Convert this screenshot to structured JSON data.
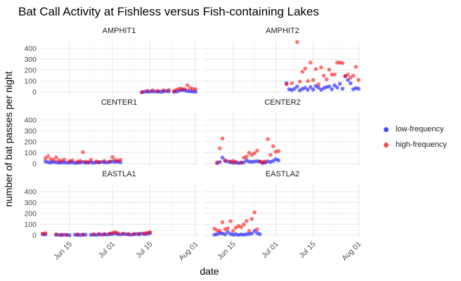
{
  "chart_data": {
    "type": "scatter",
    "title": "Bat Call Activity at Fishless versus Fish-containing Lakes",
    "xlabel": "date",
    "ylabel": "number of bat passes per night",
    "xlim": [
      "2023-06-04",
      "2023-08-02"
    ],
    "ylim": [
      -20,
      470
    ],
    "yticks": [
      0,
      100,
      200,
      300,
      400
    ],
    "xticks": [
      {
        "date": "2023-06-15",
        "label": "Jun 15"
      },
      {
        "date": "2023-07-01",
        "label": "Jul 01"
      },
      {
        "date": "2023-07-15",
        "label": "Jul 15"
      },
      {
        "date": "2023-08-01",
        "label": "Aug 01"
      }
    ],
    "grid": true,
    "legend_position": "right",
    "series_meta": [
      {
        "name": "low-frequency",
        "color": "#0000ff"
      },
      {
        "name": "high-frequency",
        "color": "#ff0000"
      }
    ],
    "facets": [
      {
        "name": "AMPHIT1",
        "low": {
          "x": [
            "2023-07-12",
            "2023-07-13",
            "2023-07-14",
            "2023-07-15",
            "2023-07-16",
            "2023-07-17",
            "2023-07-18",
            "2023-07-19",
            "2023-07-20",
            "2023-07-21",
            "2023-07-22",
            "2023-07-24",
            "2023-07-25",
            "2023-07-26",
            "2023-07-27",
            "2023-07-28",
            "2023-07-29",
            "2023-07-30",
            "2023-07-31",
            "2023-08-01"
          ],
          "y": [
            -3,
            2,
            3,
            4,
            5,
            4,
            3,
            2,
            5,
            8,
            6,
            2,
            4,
            12,
            18,
            14,
            8,
            5,
            3,
            2
          ]
        },
        "high": {
          "x": [
            "2023-07-12",
            "2023-07-14",
            "2023-07-16",
            "2023-07-18",
            "2023-07-20",
            "2023-07-22",
            "2023-07-24",
            "2023-07-25",
            "2023-07-26",
            "2023-07-27",
            "2023-07-28",
            "2023-07-29",
            "2023-07-30",
            "2023-07-31",
            "2023-08-01"
          ],
          "y": [
            -2,
            10,
            14,
            10,
            15,
            18,
            8,
            22,
            32,
            28,
            25,
            62,
            35,
            28,
            25
          ]
        }
      },
      {
        "name": "AMPHIT2",
        "low": {
          "x": [
            "2023-07-05",
            "2023-07-06",
            "2023-07-07",
            "2023-07-08",
            "2023-07-09",
            "2023-07-10",
            "2023-07-11",
            "2023-07-12",
            "2023-07-13",
            "2023-07-14",
            "2023-07-15",
            "2023-07-16",
            "2023-07-17",
            "2023-07-18",
            "2023-07-19",
            "2023-07-20",
            "2023-07-21",
            "2023-07-22",
            "2023-07-23",
            "2023-07-24",
            "2023-07-25",
            "2023-07-26",
            "2023-07-27",
            "2023-07-28",
            "2023-07-29",
            "2023-07-30",
            "2023-07-31",
            "2023-08-01"
          ],
          "y": [
            80,
            25,
            18,
            30,
            50,
            15,
            28,
            38,
            20,
            45,
            22,
            55,
            40,
            20,
            35,
            45,
            50,
            25,
            60,
            40,
            75,
            30,
            145,
            110,
            80,
            25,
            35,
            30
          ]
        },
        "high": {
          "x": [
            "2023-07-05",
            "2023-07-07",
            "2023-07-09",
            "2023-07-10",
            "2023-07-11",
            "2023-07-12",
            "2023-07-13",
            "2023-07-14",
            "2023-07-15",
            "2023-07-16",
            "2023-07-17",
            "2023-07-18",
            "2023-07-19",
            "2023-07-20",
            "2023-07-21",
            "2023-07-22",
            "2023-07-23",
            "2023-07-24",
            "2023-07-25",
            "2023-07-26",
            "2023-07-27",
            "2023-07-28",
            "2023-07-29",
            "2023-07-30",
            "2023-07-31",
            "2023-08-01"
          ],
          "y": [
            70,
            80,
            458,
            95,
            185,
            215,
            100,
            270,
            110,
            210,
            70,
            225,
            150,
            115,
            205,
            160,
            160,
            270,
            270,
            265,
            145,
            160,
            130,
            150,
            230,
            110
          ]
        }
      },
      {
        "name": "CENTER1",
        "low": {
          "x": [
            "2023-06-06",
            "2023-06-07",
            "2023-06-08",
            "2023-06-09",
            "2023-06-10",
            "2023-06-11",
            "2023-06-12",
            "2023-06-13",
            "2023-06-14",
            "2023-06-15",
            "2023-06-16",
            "2023-06-17",
            "2023-06-18",
            "2023-06-19",
            "2023-06-20",
            "2023-06-21",
            "2023-06-22",
            "2023-06-23",
            "2023-06-24",
            "2023-06-25",
            "2023-06-26",
            "2023-06-27",
            "2023-06-28",
            "2023-06-29",
            "2023-06-30",
            "2023-07-01",
            "2023-07-02",
            "2023-07-03",
            "2023-07-04"
          ],
          "y": [
            20,
            12,
            10,
            15,
            12,
            8,
            10,
            12,
            8,
            10,
            12,
            6,
            8,
            10,
            14,
            8,
            10,
            12,
            8,
            12,
            10,
            15,
            12,
            10,
            14,
            20,
            15,
            18,
            12
          ]
        },
        "high": {
          "x": [
            "2023-06-06",
            "2023-06-07",
            "2023-06-08",
            "2023-06-09",
            "2023-06-10",
            "2023-06-11",
            "2023-06-12",
            "2023-06-13",
            "2023-06-15",
            "2023-06-16",
            "2023-06-18",
            "2023-06-19",
            "2023-06-20",
            "2023-06-21",
            "2023-06-22",
            "2023-06-23",
            "2023-06-25",
            "2023-06-26",
            "2023-06-28",
            "2023-06-30",
            "2023-07-01",
            "2023-07-02",
            "2023-07-03",
            "2023-07-04"
          ],
          "y": [
            50,
            68,
            40,
            35,
            58,
            30,
            25,
            38,
            22,
            30,
            18,
            25,
            105,
            18,
            12,
            35,
            20,
            15,
            25,
            20,
            60,
            35,
            25,
            35
          ]
        }
      },
      {
        "name": "CENTER2",
        "low": {
          "x": [
            "2023-06-09",
            "2023-06-10",
            "2023-06-11",
            "2023-06-12",
            "2023-06-13",
            "2023-06-14",
            "2023-06-15",
            "2023-06-16",
            "2023-06-17",
            "2023-06-18",
            "2023-06-19",
            "2023-06-20",
            "2023-06-21",
            "2023-06-22",
            "2023-06-23",
            "2023-06-24",
            "2023-06-25",
            "2023-06-26",
            "2023-06-27",
            "2023-06-28",
            "2023-06-29",
            "2023-06-30",
            "2023-07-01",
            "2023-07-02"
          ],
          "y": [
            5,
            15,
            55,
            25,
            20,
            12,
            8,
            10,
            5,
            8,
            10,
            30,
            18,
            15,
            20,
            22,
            18,
            5,
            10,
            20,
            15,
            25,
            40,
            30
          ]
        },
        "high": {
          "x": [
            "2023-06-09",
            "2023-06-10",
            "2023-06-11",
            "2023-06-12",
            "2023-06-14",
            "2023-06-15",
            "2023-06-16",
            "2023-06-18",
            "2023-06-19",
            "2023-06-20",
            "2023-06-21",
            "2023-06-22",
            "2023-06-23",
            "2023-06-24",
            "2023-06-25",
            "2023-06-26",
            "2023-06-27",
            "2023-06-28",
            "2023-06-29",
            "2023-06-30",
            "2023-07-01",
            "2023-07-02"
          ],
          "y": [
            10,
            140,
            230,
            30,
            20,
            25,
            15,
            10,
            55,
            65,
            100,
            80,
            95,
            120,
            20,
            15,
            20,
            225,
            80,
            160,
            110,
            115
          ]
        }
      },
      {
        "name": "EASTLA1",
        "low": {
          "x": [
            "2023-06-05",
            "2023-06-06",
            "2023-06-10",
            "2023-06-11",
            "2023-06-12",
            "2023-06-13",
            "2023-06-14",
            "2023-06-15",
            "2023-06-17",
            "2023-06-18",
            "2023-06-19",
            "2023-06-20",
            "2023-06-21",
            "2023-06-23",
            "2023-06-24",
            "2023-06-25",
            "2023-06-26",
            "2023-06-27",
            "2023-06-28",
            "2023-06-29",
            "2023-06-30",
            "2023-07-01",
            "2023-07-02",
            "2023-07-03",
            "2023-07-04",
            "2023-07-05",
            "2023-07-06",
            "2023-07-07",
            "2023-07-08",
            "2023-07-09",
            "2023-07-10",
            "2023-07-11",
            "2023-07-12",
            "2023-07-13",
            "2023-07-14",
            "2023-07-15"
          ],
          "y": [
            10,
            8,
            5,
            3,
            2,
            5,
            3,
            0,
            5,
            3,
            2,
            5,
            6,
            4,
            5,
            3,
            8,
            5,
            10,
            6,
            10,
            12,
            18,
            10,
            8,
            12,
            10,
            8,
            5,
            10,
            12,
            8,
            15,
            10,
            14,
            20
          ]
        },
        "high": {
          "x": [
            "2023-06-05",
            "2023-06-06",
            "2023-06-10",
            "2023-06-12",
            "2023-06-14",
            "2023-06-18",
            "2023-06-20",
            "2023-06-24",
            "2023-06-26",
            "2023-06-28",
            "2023-06-30",
            "2023-07-01",
            "2023-07-02",
            "2023-07-03",
            "2023-07-05",
            "2023-07-07",
            "2023-07-09",
            "2023-07-11",
            "2023-07-13",
            "2023-07-14",
            "2023-07-15"
          ],
          "y": [
            15,
            20,
            8,
            5,
            4,
            8,
            6,
            10,
            12,
            8,
            15,
            22,
            30,
            20,
            15,
            12,
            10,
            14,
            18,
            22,
            30
          ]
        }
      },
      {
        "name": "EASTLA2",
        "low": {
          "x": [
            "2023-06-08",
            "2023-06-09",
            "2023-06-10",
            "2023-06-11",
            "2023-06-12",
            "2023-06-13",
            "2023-06-14",
            "2023-06-15",
            "2023-06-16",
            "2023-06-17",
            "2023-06-18",
            "2023-06-19",
            "2023-06-20",
            "2023-06-21",
            "2023-06-22",
            "2023-06-23",
            "2023-06-24",
            "2023-06-25"
          ],
          "y": [
            5,
            10,
            20,
            15,
            8,
            30,
            12,
            5,
            10,
            3,
            8,
            5,
            10,
            12,
            15,
            40,
            20,
            10
          ]
        },
        "high": {
          "x": [
            "2023-06-08",
            "2023-06-09",
            "2023-06-10",
            "2023-06-11",
            "2023-06-12",
            "2023-06-13",
            "2023-06-14",
            "2023-06-15",
            "2023-06-16",
            "2023-06-17",
            "2023-06-18",
            "2023-06-19",
            "2023-06-20",
            "2023-06-21",
            "2023-06-22",
            "2023-06-23",
            "2023-06-24"
          ],
          "y": [
            60,
            45,
            40,
            120,
            55,
            65,
            130,
            40,
            70,
            85,
            75,
            100,
            130,
            40,
            150,
            210,
            55
          ]
        }
      }
    ]
  }
}
